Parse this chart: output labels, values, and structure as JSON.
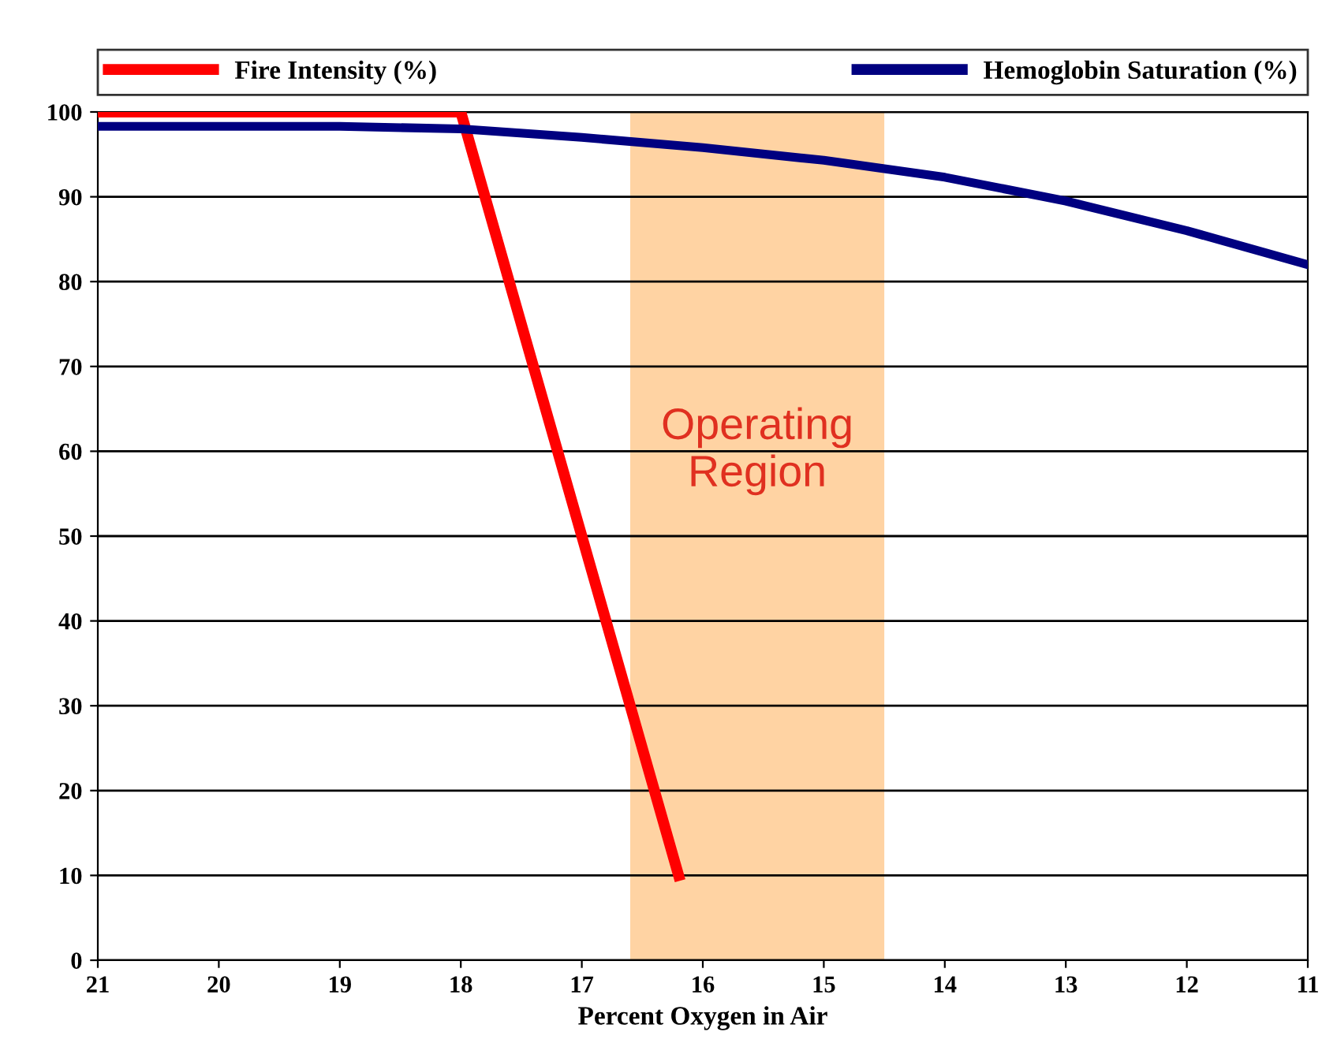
{
  "chart_data": {
    "type": "line",
    "xlabel": "Percent Oxygen in Air",
    "series": [
      {
        "name": "Fire Intensity (%)",
        "color": "#ff0000",
        "x": [
          21,
          18,
          16.2
        ],
        "values": [
          100,
          100,
          10
        ]
      },
      {
        "name": "Hemoglobin Saturation (%)",
        "color": "#000080",
        "x": [
          21,
          19,
          18,
          17,
          16,
          15,
          14,
          13,
          12,
          11
        ],
        "values": [
          98.3,
          98.3,
          98.0,
          97.0,
          95.8,
          94.3,
          92.3,
          89.5,
          86,
          82
        ]
      }
    ],
    "bands": [
      {
        "axis": "x",
        "from": 16.6,
        "to": 14.5,
        "label": "Operating\nRegion",
        "color": "#ffc88c"
      }
    ],
    "xlim": [
      21,
      11
    ],
    "xticks": [
      21,
      20,
      19,
      18,
      17,
      16,
      15,
      14,
      13,
      12,
      11
    ],
    "ylim": [
      0,
      100
    ],
    "yticks": [
      0,
      10,
      20,
      30,
      40,
      50,
      60,
      70,
      80,
      90,
      100
    ],
    "grid": "y",
    "legend": "top",
    "marker": "none",
    "line_style": "solid"
  }
}
